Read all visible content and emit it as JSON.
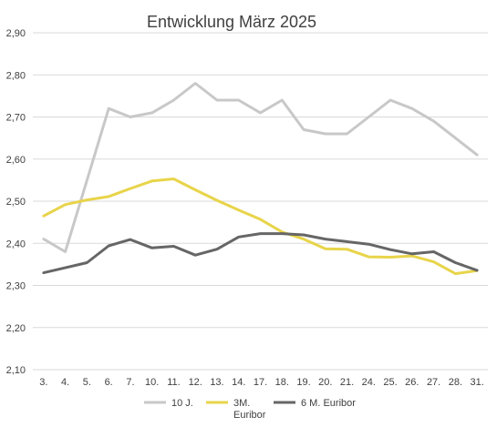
{
  "chart_data": {
    "type": "line",
    "title": "Entwicklung März 2025",
    "categories": [
      "3.",
      "4.",
      "5.",
      "6.",
      "7.",
      "10.",
      "11.",
      "12.",
      "13.",
      "14.",
      "17.",
      "18.",
      "19.",
      "20.",
      "21.",
      "24.",
      "25.",
      "26.",
      "27.",
      "28.",
      "31."
    ],
    "ylim": [
      2.1,
      2.9
    ],
    "yticks": [
      "2,10",
      "2,20",
      "2,30",
      "2,40",
      "2,50",
      "2,60",
      "2,70",
      "2,80",
      "2,90"
    ],
    "grid": true,
    "legend_position": "bottom",
    "series": [
      {
        "name": "10 J.",
        "color": "#c8c8c8",
        "values": [
          2.41,
          2.38,
          2.55,
          2.72,
          2.7,
          2.71,
          2.74,
          2.78,
          2.74,
          2.74,
          2.71,
          2.74,
          2.67,
          2.66,
          2.66,
          2.7,
          2.74,
          2.72,
          2.69,
          2.65,
          2.61
        ]
      },
      {
        "name": "3M. Euribor",
        "name_lines": [
          "3M.",
          "Euribor"
        ],
        "color": "#e8d44a",
        "values": [
          2.465,
          2.492,
          2.503,
          2.511,
          2.53,
          2.548,
          2.553,
          2.527,
          2.502,
          2.479,
          2.457,
          2.427,
          2.41,
          2.387,
          2.386,
          2.368,
          2.367,
          2.37,
          2.356,
          2.328,
          2.335
        ]
      },
      {
        "name": "6 M. Euribor",
        "color": "#666666",
        "values": [
          2.33,
          2.342,
          2.354,
          2.394,
          2.409,
          2.389,
          2.393,
          2.372,
          2.386,
          2.415,
          2.423,
          2.423,
          2.42,
          2.41,
          2.404,
          2.398,
          2.385,
          2.375,
          2.38,
          2.354,
          2.336
        ]
      }
    ]
  }
}
